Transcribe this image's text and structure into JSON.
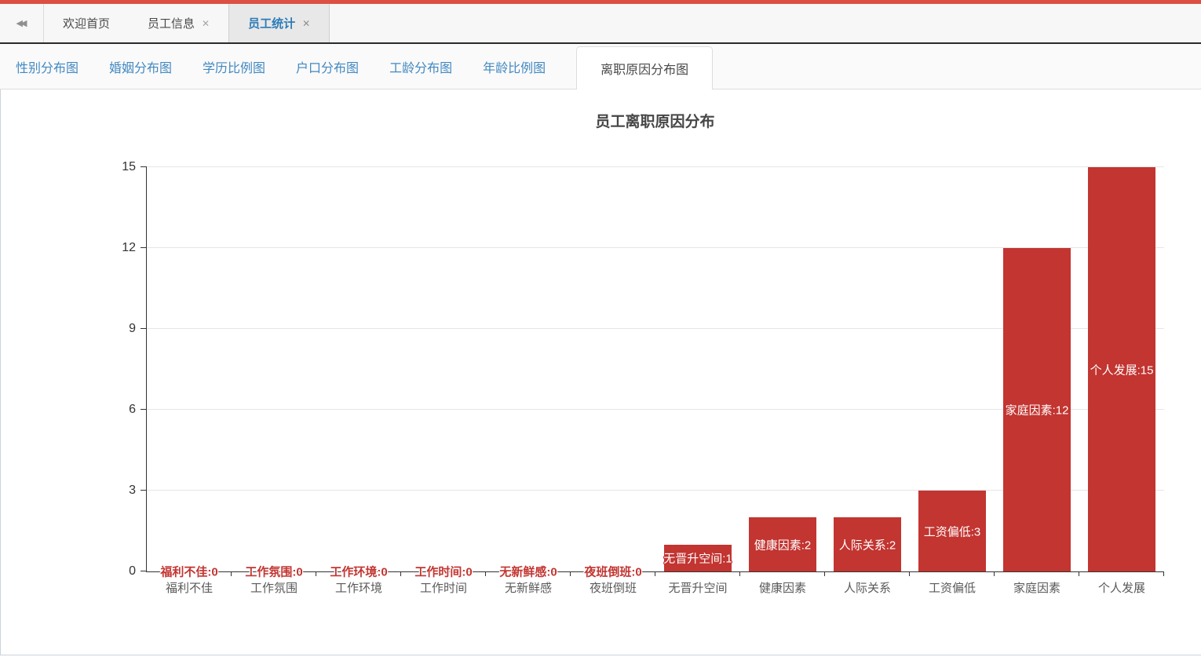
{
  "topbar": {
    "accent_color": "#dc5044",
    "collapse_icon": "◀◀",
    "close_icon": "✕",
    "tabs": [
      {
        "label": "欢迎首页",
        "closable": false,
        "active": false
      },
      {
        "label": "员工信息",
        "closable": true,
        "active": false
      },
      {
        "label": "员工统计",
        "closable": true,
        "active": true
      }
    ]
  },
  "subnav": {
    "tabs": [
      {
        "label": "性别分布图",
        "active": false
      },
      {
        "label": "婚姻分布图",
        "active": false
      },
      {
        "label": "学历比例图",
        "active": false
      },
      {
        "label": "户口分布图",
        "active": false
      },
      {
        "label": "工龄分布图",
        "active": false
      },
      {
        "label": "年龄比例图",
        "active": false
      },
      {
        "label": "离职原因分布图",
        "active": true
      }
    ]
  },
  "chart_data": {
    "type": "bar",
    "title": "员工离职原因分布",
    "categories": [
      "福利不佳",
      "工作氛围",
      "工作环境",
      "工作时间",
      "无新鲜感",
      "夜班倒班",
      "无晋升空间",
      "健康因素",
      "人际关系",
      "工资偏低",
      "家庭因素",
      "个人发展"
    ],
    "values": [
      0,
      0,
      0,
      0,
      0,
      0,
      1,
      2,
      2,
      3,
      12,
      15
    ],
    "bar_labels": [
      "福利不佳:0",
      "工作氛围:0",
      "工作环境:0",
      "工作时间:0",
      "无新鲜感:0",
      "夜班倒班:0",
      "无晋升空间:1",
      "健康因素:2",
      "人际关系:2",
      "工资偏低:3",
      "家庭因素:12",
      "个人发展:15"
    ],
    "xlabel": "",
    "ylabel": "",
    "ylim": [
      0,
      15
    ],
    "yticks": [
      0,
      3,
      6,
      9,
      12,
      15
    ],
    "grid": true,
    "legend": "none",
    "bar_color": "#c23531"
  }
}
